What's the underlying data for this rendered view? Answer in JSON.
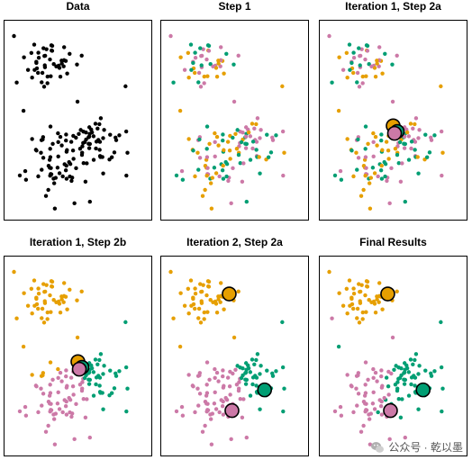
{
  "colors": {
    "orange": "#E69F00",
    "pink": "#CC79A7",
    "green": "#009E73",
    "black": "#000000"
  },
  "titles": [
    "Data",
    "Step 1",
    "Iteration 1, Step 2a",
    "Iteration 1, Step 2b",
    "Iteration 2, Step 2a",
    "Final Results"
  ],
  "watermark": {
    "text": "公众号 · 乾以墨",
    "icon": "wechat-icon"
  },
  "chart_data": [
    {
      "type": "scatter",
      "title": "Data",
      "coloring": "none",
      "centroids": [],
      "xlim": [
        0,
        1
      ],
      "ylim": [
        0,
        1
      ]
    },
    {
      "type": "scatter",
      "title": "Step 1",
      "coloring": "random",
      "centroids": [],
      "xlim": [
        0,
        1
      ],
      "ylim": [
        0,
        1
      ]
    },
    {
      "type": "scatter",
      "title": "Iteration 1, Step 2a",
      "coloring": "random",
      "centroids": [
        {
          "cluster": "orange",
          "x": 0.5,
          "y": 0.47
        },
        {
          "cluster": "green",
          "x": 0.53,
          "y": 0.44
        },
        {
          "cluster": "pink",
          "x": 0.51,
          "y": 0.43
        }
      ],
      "xlim": [
        0,
        1
      ],
      "ylim": [
        0,
        1
      ]
    },
    {
      "type": "scatter",
      "title": "Iteration 1, Step 2b",
      "coloring": "nearest",
      "centroids": [
        {
          "cluster": "orange",
          "x": 0.5,
          "y": 0.47
        },
        {
          "cluster": "green",
          "x": 0.53,
          "y": 0.44
        },
        {
          "cluster": "pink",
          "x": 0.51,
          "y": 0.43
        }
      ],
      "xlim": [
        0,
        1
      ],
      "ylim": [
        0,
        1
      ]
    },
    {
      "type": "scatter",
      "title": "Iteration 2, Step 2a",
      "coloring": "nearest",
      "centroids": [
        {
          "cluster": "orange",
          "x": 0.46,
          "y": 0.83
        },
        {
          "cluster": "green",
          "x": 0.72,
          "y": 0.32
        },
        {
          "cluster": "pink",
          "x": 0.48,
          "y": 0.21
        }
      ],
      "xlim": [
        0,
        1
      ],
      "ylim": [
        0,
        1
      ]
    },
    {
      "type": "scatter",
      "title": "Final Results",
      "coloring": "final",
      "centroids": [
        {
          "cluster": "orange",
          "x": 0.46,
          "y": 0.83
        },
        {
          "cluster": "green",
          "x": 0.72,
          "y": 0.32
        },
        {
          "cluster": "pink",
          "x": 0.48,
          "y": 0.21
        }
      ],
      "xlim": [
        0,
        1
      ],
      "ylim": [
        0,
        1
      ]
    }
  ]
}
